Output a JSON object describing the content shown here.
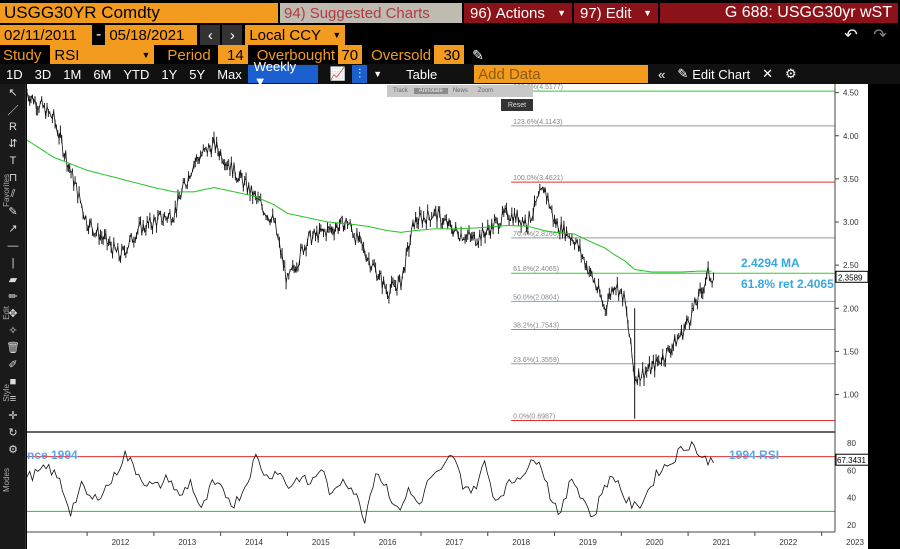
{
  "header": {
    "ticker": "USGG30YR Comdty",
    "suggested_num": "94)",
    "suggested_label": "Suggested Charts",
    "actions_num": "96)",
    "actions_label": "Actions",
    "edit_num": "97)",
    "edit_label": "Edit",
    "security": "G 688: USGG30yr wST"
  },
  "dates": {
    "start": "02/11/2011",
    "end": "05/18/2021",
    "currency": "Local CCY"
  },
  "study": {
    "label": "Study",
    "value": "RSI",
    "period_label": "Period",
    "period": "14",
    "overbought_label": "Overbought",
    "overbought": "70",
    "oversold_label": "Oversold",
    "oversold": "30"
  },
  "ranges": [
    "1D",
    "3D",
    "1M",
    "6M",
    "YTD",
    "1Y",
    "5Y",
    "Max"
  ],
  "frequency": "Weekly ▼",
  "table_label": "Table",
  "add_data_placeholder": "Add Data",
  "edit_chart_label": "Edit Chart",
  "mini_toolbar": {
    "track": "Track",
    "annotate": "Annotate",
    "news": "News",
    "zoom": "Zoom",
    "reset": "Reset"
  },
  "side_labels": {
    "favorites": "Favorites",
    "edit": "Edit",
    "style": "Style",
    "modes": "Modes"
  },
  "fib_levels": [
    {
      "text": "138.2%(4.5177)",
      "value": 4.5177,
      "color": "#2fcf2f"
    },
    {
      "text": "123.6%(4.1143)",
      "value": 4.1143,
      "color": "#999999"
    },
    {
      "text": "100.0%(3.4621)",
      "value": 3.4621,
      "color": "#e03030"
    },
    {
      "text": "76.4%(2.8166)",
      "value": 2.8166,
      "color": "#999999"
    },
    {
      "text": "61.8%(2.4065)",
      "value": 2.4065,
      "color": "#2fcf2f"
    },
    {
      "text": "50.0%(2.0804)",
      "value": 2.0804,
      "color": "#26c6f0"
    },
    {
      "text": "38.2%(1.7543)",
      "value": 1.7543,
      "color": "#2fcf2f"
    },
    {
      "text": "23.6%(1.3559)",
      "value": 1.3559,
      "color": "#999999"
    },
    {
      "text": "0.0%(0.6987)",
      "value": 0.6987,
      "color": "#e03030"
    }
  ],
  "annotations": {
    "ma_label": "2.4294 MA",
    "ret_label": "61.8% ret 2.4065",
    "rsi_left": "nce 1994",
    "rsi_right": "1994 RSI"
  },
  "price_axis": {
    "ticks": [
      "4.50",
      "4.00",
      "3.50",
      "3.00",
      "2.50",
      "2.00",
      "1.50",
      "1.00"
    ],
    "last": "2.3589"
  },
  "rsi_axis": {
    "ticks": [
      "80",
      "60",
      "40",
      "20"
    ],
    "last": "67.3431"
  },
  "x_axis": [
    "2012",
    "2013",
    "2014",
    "2015",
    "2016",
    "2017",
    "2018",
    "2019",
    "2020",
    "2021",
    "2022",
    "2023"
  ],
  "chart_data": {
    "type": "line",
    "x": [
      "2011.1",
      "2011.5",
      "2012.0",
      "2012.5",
      "2012.75",
      "2013.0",
      "2013.3",
      "2013.6",
      "2013.9",
      "2014.2",
      "2014.5",
      "2014.8",
      "2015.0",
      "2015.3",
      "2015.6",
      "2015.9",
      "2016.2",
      "2016.5",
      "2016.7",
      "2016.9",
      "2017.2",
      "2017.5",
      "2017.8",
      "2018.0",
      "2018.3",
      "2018.6",
      "2018.85",
      "2019.0",
      "2019.3",
      "2019.6",
      "2019.75",
      "2019.9",
      "2020.05",
      "2020.2",
      "2020.45",
      "2020.7",
      "2020.9",
      "2021.15",
      "2021.3",
      "2021.38"
    ],
    "series": [
      {
        "values": [
          4.5,
          4.2,
          3.0,
          2.6,
          2.9,
          3.0,
          3.1,
          3.7,
          3.9,
          3.6,
          3.3,
          3.0,
          2.3,
          2.8,
          2.9,
          3.0,
          2.6,
          2.2,
          2.3,
          3.0,
          3.1,
          2.9,
          2.8,
          2.9,
          3.1,
          3.0,
          3.4,
          3.0,
          2.8,
          2.3,
          2.0,
          2.3,
          2.1,
          1.2,
          1.3,
          1.5,
          1.7,
          2.1,
          2.4,
          2.36
        ]
      },
      {
        "values": [
          3.95,
          3.75,
          3.6,
          3.5,
          3.45,
          3.4,
          3.35,
          3.35,
          3.4,
          3.35,
          3.3,
          3.2,
          3.1,
          3.05,
          3.0,
          2.98,
          2.95,
          2.9,
          2.88,
          2.9,
          2.92,
          2.92,
          2.93,
          2.94,
          2.96,
          2.95,
          2.9,
          2.88,
          2.86,
          2.75,
          2.7,
          2.62,
          2.55,
          2.45,
          2.42,
          2.42,
          2.42,
          2.43,
          2.43,
          2.43
        ]
      }
    ],
    "ylim": [
      0.6,
      4.6
    ],
    "rsi": {
      "ylim": [
        15,
        85
      ],
      "overbought": 70,
      "oversold": 30,
      "values": [
        55,
        58,
        62,
        52,
        30,
        48,
        38,
        45,
        55,
        72,
        60,
        50,
        48,
        55,
        40,
        52,
        30,
        50,
        45,
        35,
        48,
        70,
        55,
        60,
        48,
        55,
        50,
        62,
        40,
        55,
        45,
        25,
        60,
        48,
        30,
        45,
        35,
        55,
        58,
        72,
        50,
        45,
        65,
        38,
        48,
        55,
        62,
        70,
        42,
        28,
        55,
        40,
        25,
        50,
        55,
        38,
        32,
        45,
        60,
        65,
        75,
        80,
        68,
        67
      ]
    }
  }
}
